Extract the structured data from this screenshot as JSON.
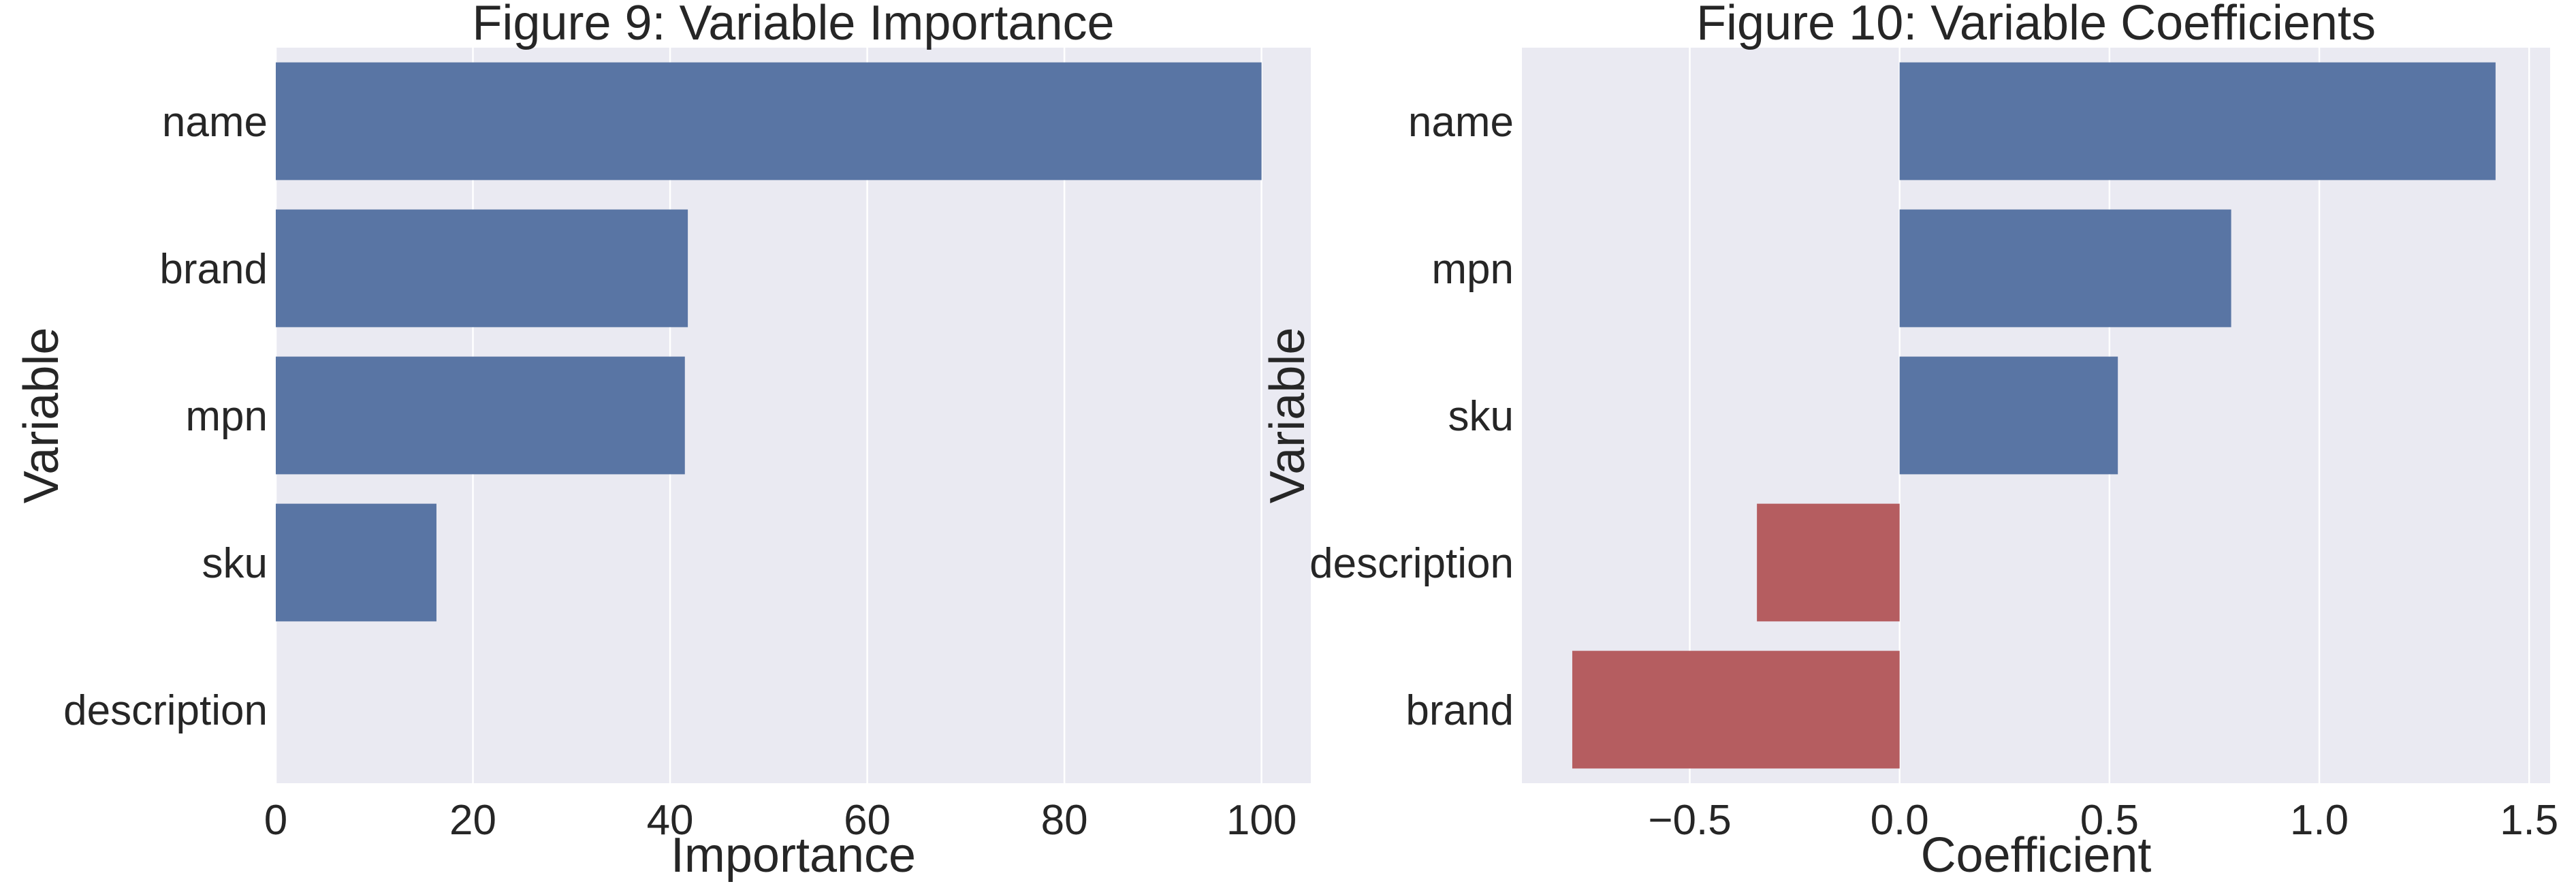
{
  "colors": {
    "plot_background": "#eaeaf2",
    "grid": "#ffffff",
    "positive_bar": "#5975a4",
    "negative_bar": "#b55d60",
    "text": "#262626"
  },
  "chart_data": [
    {
      "type": "bar",
      "orientation": "horizontal",
      "title": "Figure 9: Variable Importance",
      "xlabel": "Importance",
      "ylabel": "Variable",
      "categories": [
        "name",
        "brand",
        "mpn",
        "sku",
        "description"
      ],
      "values": [
        100,
        41.8,
        41.5,
        16.3,
        0
      ],
      "xlim": [
        0,
        105
      ],
      "xticks": [
        0,
        20,
        40,
        60,
        80,
        100
      ],
      "xtick_labels": [
        "0",
        "20",
        "40",
        "60",
        "80",
        "100"
      ],
      "grid": true
    },
    {
      "type": "bar",
      "orientation": "horizontal",
      "title": "Figure 10: Variable Coefficients",
      "xlabel": "Coefficient",
      "ylabel": "Variable",
      "categories": [
        "name",
        "mpn",
        "sku",
        "description",
        "brand"
      ],
      "values": [
        1.42,
        0.79,
        0.52,
        -0.34,
        -0.78
      ],
      "xlim": [
        -0.9,
        1.55
      ],
      "xticks": [
        -0.5,
        0.0,
        0.5,
        1.0,
        1.5
      ],
      "xtick_labels": [
        "−0.5",
        "0.0",
        "0.5",
        "1.0",
        "1.5"
      ],
      "grid": true
    }
  ]
}
